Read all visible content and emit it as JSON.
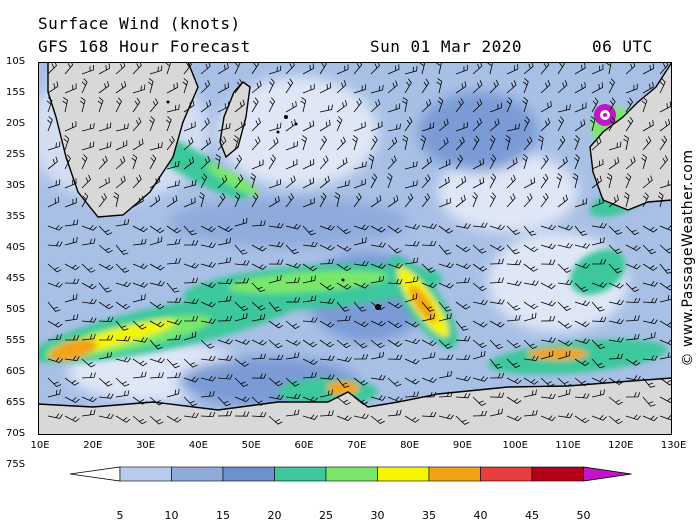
{
  "header": {
    "title": "Surface Wind (knots)",
    "model": "GFS 168 Hour Forecast",
    "date": "Sun 01 Mar 2020",
    "time": "06 UTC"
  },
  "credit": "© www.PassageWeather.com",
  "lat_labels": [
    "10S",
    "15S",
    "20S",
    "25S",
    "30S",
    "35S",
    "40S",
    "45S",
    "50S",
    "55S",
    "60S",
    "65S",
    "70S",
    "75S"
  ],
  "lon_labels": [
    "10E",
    "20E",
    "30E",
    "40E",
    "50E",
    "60E",
    "70E",
    "80E",
    "90E",
    "100E",
    "110E",
    "120E",
    "130E"
  ],
  "colorbar": {
    "ticks": [
      "5",
      "10",
      "15",
      "20",
      "25",
      "30",
      "35",
      "40",
      "45",
      "50"
    ],
    "colors": [
      "#e6ecf8",
      "#b9cbea",
      "#8fabdc",
      "#6f90d0",
      "#3dc79c",
      "#79e86a",
      "#f5f500",
      "#f3a312",
      "#ea3d3d",
      "#b5001a",
      "#c414c8"
    ]
  }
}
